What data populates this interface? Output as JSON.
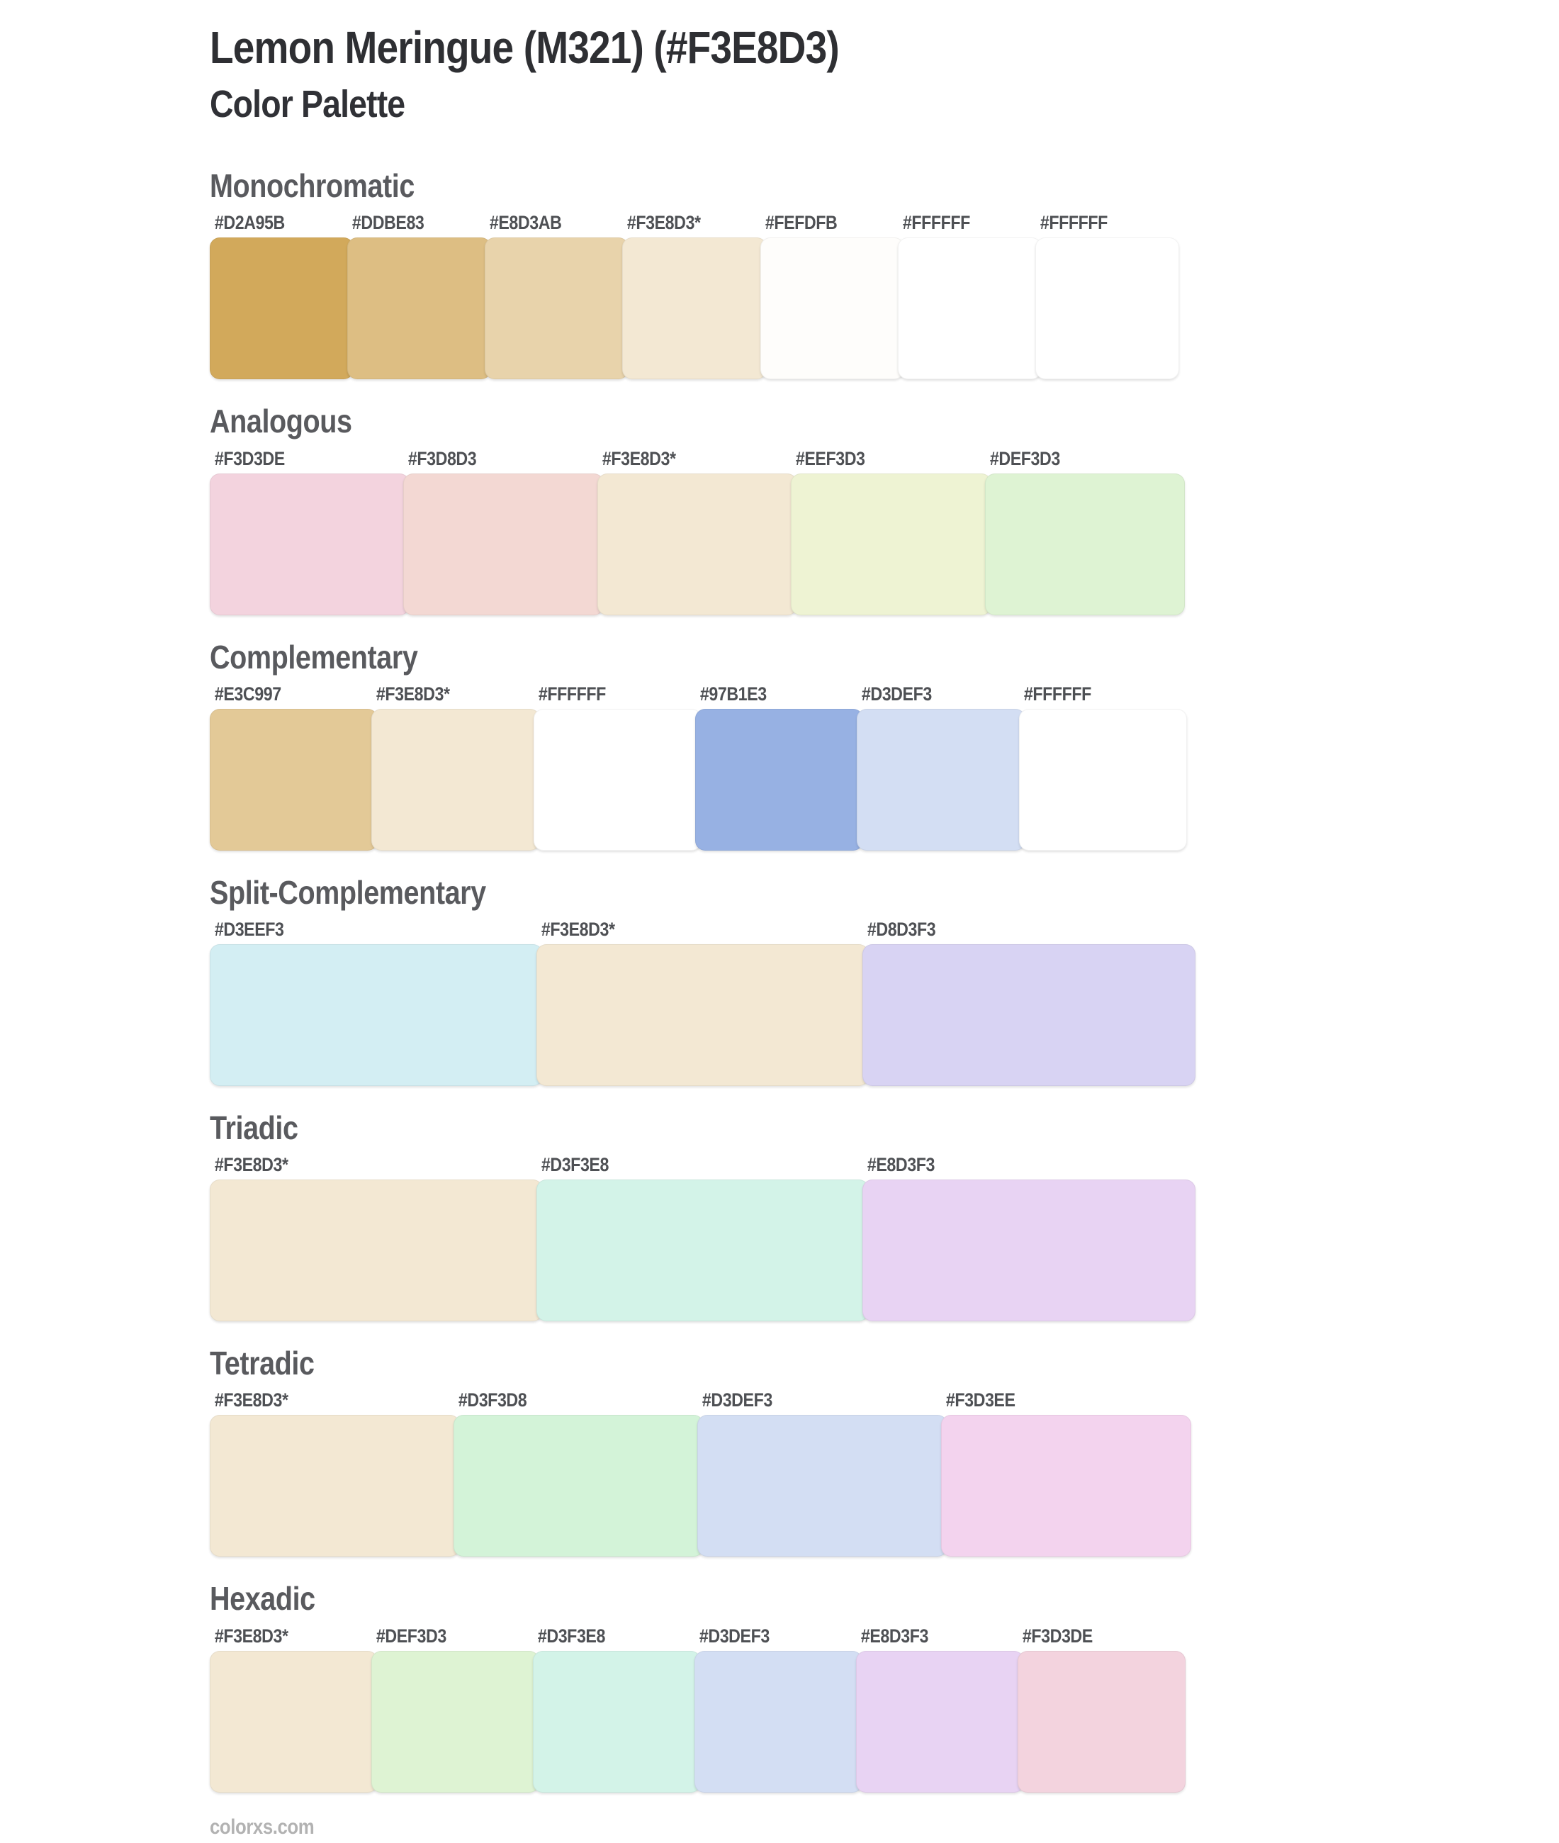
{
  "header": {
    "title": "Lemon Meringue (M321) (#F3E8D3)",
    "subtitle": "Color Palette",
    "base_color_name": "Lemon Meringue",
    "base_color_code": "M321",
    "base_color_hex": "#F3E8D3"
  },
  "footer": {
    "site": "colorxs.com"
  },
  "sections": [
    {
      "name": "Monochromatic",
      "swatches": [
        {
          "label": "#D2A95B",
          "color": "#D2A95B"
        },
        {
          "label": "#DDBE83",
          "color": "#DDBE83"
        },
        {
          "label": "#E8D3AB",
          "color": "#E8D3AB"
        },
        {
          "label": "#F3E8D3*",
          "color": "#F3E8D3"
        },
        {
          "label": "#FEFDFB",
          "color": "#FEFDFB"
        },
        {
          "label": "#FFFFFF",
          "color": "#FFFFFF"
        },
        {
          "label": "#FFFFFF",
          "color": "#FFFFFF"
        }
      ]
    },
    {
      "name": "Analogous",
      "swatches": [
        {
          "label": "#F3D3DE",
          "color": "#F3D3DE"
        },
        {
          "label": "#F3D8D3",
          "color": "#F3D8D3"
        },
        {
          "label": "#F3E8D3*",
          "color": "#F3E8D3"
        },
        {
          "label": "#EEF3D3",
          "color": "#EEF3D3"
        },
        {
          "label": "#DEF3D3",
          "color": "#DEF3D3"
        }
      ]
    },
    {
      "name": "Complementary",
      "swatches": [
        {
          "label": "#E3C997",
          "color": "#E3C997"
        },
        {
          "label": "#F3E8D3*",
          "color": "#F3E8D3"
        },
        {
          "label": "#FFFFFF",
          "color": "#FFFFFF"
        },
        {
          "label": "#97B1E3",
          "color": "#97B1E3"
        },
        {
          "label": "#D3DEF3",
          "color": "#D3DEF3"
        },
        {
          "label": "#FFFFFF",
          "color": "#FFFFFF"
        }
      ]
    },
    {
      "name": "Split-Complementary",
      "swatches": [
        {
          "label": "#D3EEF3",
          "color": "#D3EEF3"
        },
        {
          "label": "#F3E8D3*",
          "color": "#F3E8D3"
        },
        {
          "label": "#D8D3F3",
          "color": "#D8D3F3"
        }
      ]
    },
    {
      "name": "Triadic",
      "swatches": [
        {
          "label": "#F3E8D3*",
          "color": "#F3E8D3"
        },
        {
          "label": "#D3F3E8",
          "color": "#D3F3E8"
        },
        {
          "label": "#E8D3F3",
          "color": "#E8D3F3"
        }
      ]
    },
    {
      "name": "Tetradic",
      "swatches": [
        {
          "label": "#F3E8D3*",
          "color": "#F3E8D3"
        },
        {
          "label": "#D3F3D8",
          "color": "#D3F3D8"
        },
        {
          "label": "#D3DEF3",
          "color": "#D3DEF3"
        },
        {
          "label": "#F3D3EE",
          "color": "#F3D3EE"
        }
      ]
    },
    {
      "name": "Hexadic",
      "swatches": [
        {
          "label": "#F3E8D3*",
          "color": "#F3E8D3"
        },
        {
          "label": "#DEF3D3",
          "color": "#DEF3D3"
        },
        {
          "label": "#D3F3E8",
          "color": "#D3F3E8"
        },
        {
          "label": "#D3DEF3",
          "color": "#D3DEF3"
        },
        {
          "label": "#E8D3F3",
          "color": "#E8D3F3"
        },
        {
          "label": "#F3D3DE",
          "color": "#F3D3DE"
        }
      ]
    }
  ]
}
